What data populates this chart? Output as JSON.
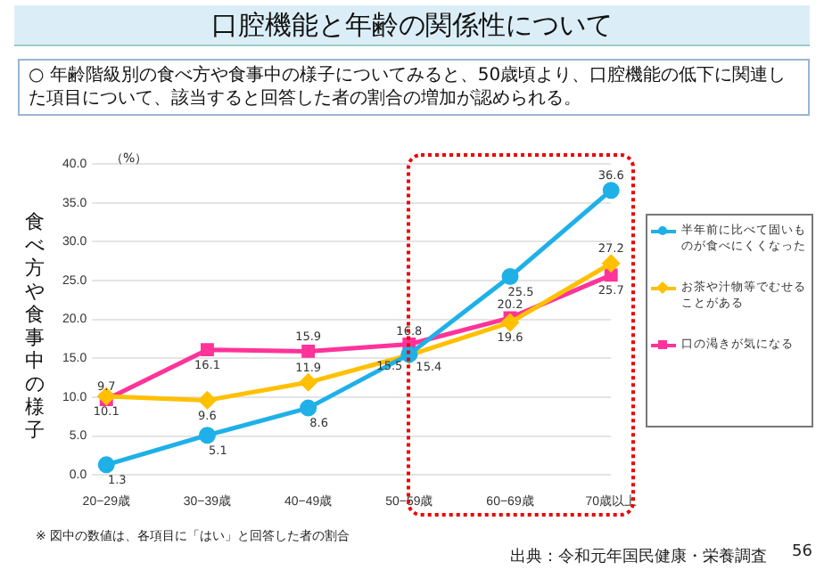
{
  "chart_data": {
    "type": "line",
    "title": "口腔機能と年齢の関係性について",
    "subtitle": "○  年齢階級別の食べ方や食事中の様子についてみると、50歳頃より、口腔機能の低下に関連した項目について、該当すると回答した者の割合の増加が認められる。",
    "ylabel": "食べ方や食事中の様子",
    "categories": [
      "20−29歳",
      "30−39歳",
      "40−49歳",
      "50−59歳",
      "60−69歳",
      "70歳以上"
    ],
    "series": [
      {
        "name": "半年前に比べて固いものが食べにくくなった",
        "color": "#1fb0e8",
        "marker": "circle",
        "values": [
          1.3,
          5.1,
          8.6,
          15.5,
          25.5,
          36.6
        ]
      },
      {
        "name": "お茶や汁物等でむせることがある",
        "color": "#ffc000",
        "marker": "diamond",
        "values": [
          10.1,
          9.6,
          11.9,
          15.4,
          19.6,
          27.2
        ]
      },
      {
        "name": "口の渇きが気になる",
        "color": "#ff3399",
        "marker": "square",
        "values": [
          9.7,
          16.1,
          15.9,
          16.8,
          20.2,
          25.7
        ]
      }
    ],
    "ylim": [
      0,
      40
    ],
    "yticks": [
      {
        "value": 0,
        "label": "0.0"
      },
      {
        "value": 5,
        "label": "5.0"
      },
      {
        "value": 10,
        "label": "10.0"
      },
      {
        "value": 15,
        "label": "15.0"
      },
      {
        "value": 20,
        "label": "20.0"
      },
      {
        "value": 25,
        "label": "25.0"
      },
      {
        "value": 30,
        "label": "30.0"
      },
      {
        "value": 35,
        "label": "35.0"
      },
      {
        "value": 40,
        "label": "40.0"
      }
    ],
    "grid": "y",
    "legend": "right",
    "data_labels": true,
    "line_style": "solid",
    "annotations": [
      "（%）",
      "※  図中の数値は、各項目に「はい」と回答した者の割合",
      "出典：令和元年国民健康・栄養調査",
      "56"
    ]
  }
}
